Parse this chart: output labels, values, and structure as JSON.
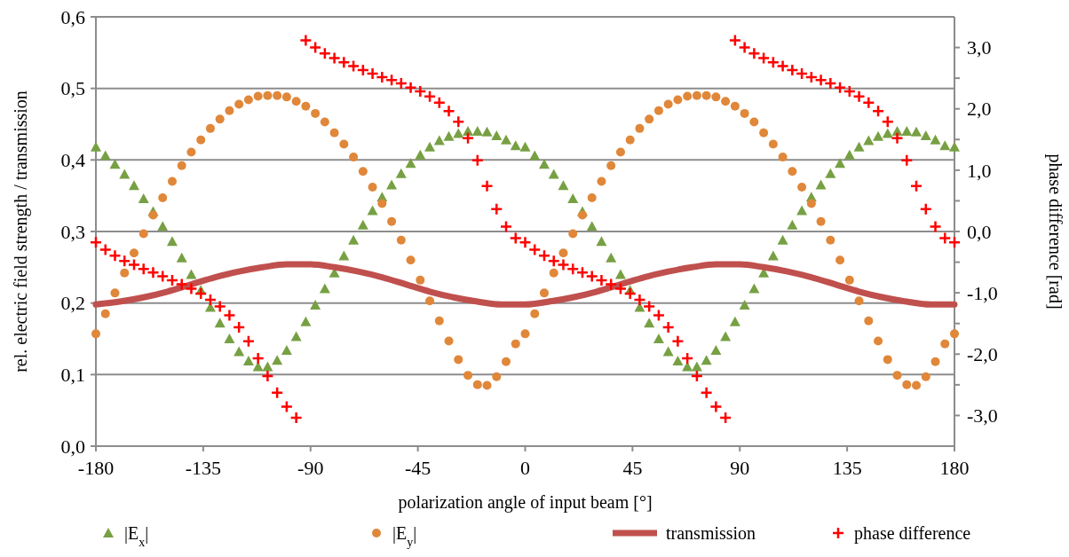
{
  "chart_data": {
    "type": "scatter",
    "xlabel": "polarization angle of input beam [°]",
    "ylabel": "rel. electric field strength / transmission",
    "y2label": "phase difference [rad]",
    "x": [
      -180,
      -176,
      -172,
      -168,
      -164,
      -160,
      -156,
      -152,
      -148,
      -144,
      -140,
      -136,
      -132,
      -128,
      -124,
      -120,
      -116,
      -112,
      -108,
      -104,
      -100,
      -96,
      -92,
      -88,
      -84,
      -80,
      -76,
      -72,
      -68,
      -64,
      -60,
      -56,
      -52,
      -48,
      -44,
      -40,
      -36,
      -32,
      -28,
      -24,
      -20,
      -16,
      -12,
      -8,
      -4,
      0,
      4,
      8,
      12,
      16,
      20,
      24,
      28,
      32,
      36,
      40,
      44,
      48,
      52,
      56,
      60,
      64,
      68,
      72,
      76,
      80,
      84,
      88,
      92,
      96,
      100,
      104,
      108,
      112,
      116,
      120,
      124,
      128,
      132,
      136,
      140,
      144,
      148,
      152,
      156,
      160,
      164,
      168,
      172,
      176,
      180
    ],
    "xlim": [
      -180,
      180
    ],
    "xticks": [
      -180,
      -135,
      -90,
      -45,
      0,
      45,
      90,
      135,
      180
    ],
    "ylim": [
      0,
      0.6
    ],
    "yticks": [
      {
        "value": 0,
        "label": "0,0"
      },
      {
        "value": 0.1,
        "label": "0,1"
      },
      {
        "value": 0.2,
        "label": "0,2"
      },
      {
        "value": 0.3,
        "label": "0,3"
      },
      {
        "value": 0.4,
        "label": "0,4"
      },
      {
        "value": 0.5,
        "label": "0,5"
      },
      {
        "value": 0.6,
        "label": "0,6"
      }
    ],
    "y2lim": [
      -3.5,
      3.5
    ],
    "y2ticks": [
      {
        "value": -3,
        "label": "-3,0"
      },
      {
        "value": -2.5,
        "label": null
      },
      {
        "value": -2,
        "label": "-2,0"
      },
      {
        "value": -1.5,
        "label": null
      },
      {
        "value": -1,
        "label": "-1,0"
      },
      {
        "value": -0.5,
        "label": null
      },
      {
        "value": 0,
        "label": "0,0"
      },
      {
        "value": 0.5,
        "label": null
      },
      {
        "value": 1,
        "label": "1,0"
      },
      {
        "value": 1.5,
        "label": null
      },
      {
        "value": 2,
        "label": "2,0"
      },
      {
        "value": 2.5,
        "label": null
      },
      {
        "value": 3,
        "label": "3,0"
      }
    ],
    "grid": "y",
    "legend": "bottom",
    "series": [
      {
        "name": "|E$_{x}$|",
        "color": "#77a043",
        "marker": "triangle",
        "values": [
          0.418,
          0.406,
          0.394,
          0.38,
          0.364,
          0.346,
          0.328,
          0.307,
          0.286,
          0.263,
          0.24,
          0.218,
          0.194,
          0.172,
          0.15,
          0.132,
          0.119,
          0.111,
          0.111,
          0.12,
          0.134,
          0.153,
          0.174,
          0.197,
          0.22,
          0.242,
          0.266,
          0.288,
          0.309,
          0.329,
          0.348,
          0.365,
          0.381,
          0.395,
          0.407,
          0.418,
          0.427,
          0.433,
          0.437,
          0.44,
          0.44,
          0.439,
          0.434,
          0.428,
          0.42,
          0.418,
          0.406,
          0.394,
          0.38,
          0.364,
          0.346,
          0.328,
          0.307,
          0.286,
          0.263,
          0.24,
          0.218,
          0.194,
          0.172,
          0.15,
          0.132,
          0.119,
          0.111,
          0.111,
          0.12,
          0.134,
          0.153,
          0.174,
          0.197,
          0.22,
          0.242,
          0.266,
          0.288,
          0.309,
          0.329,
          0.348,
          0.365,
          0.381,
          0.395,
          0.407,
          0.418,
          0.427,
          0.433,
          0.437,
          0.44,
          0.44,
          0.439,
          0.434,
          0.428,
          0.42,
          0.418
        ]
      },
      {
        "name": "|E$_{y}$|",
        "color": "#e0873a",
        "marker": "circle",
        "values": [
          0.157,
          0.185,
          0.214,
          0.242,
          0.27,
          0.297,
          0.323,
          0.347,
          0.37,
          0.392,
          0.411,
          0.428,
          0.444,
          0.457,
          0.469,
          0.478,
          0.484,
          0.489,
          0.49,
          0.49,
          0.488,
          0.482,
          0.475,
          0.465,
          0.453,
          0.438,
          0.422,
          0.404,
          0.384,
          0.362,
          0.339,
          0.314,
          0.288,
          0.26,
          0.232,
          0.203,
          0.175,
          0.147,
          0.121,
          0.099,
          0.086,
          0.085,
          0.097,
          0.118,
          0.143,
          0.157,
          0.185,
          0.214,
          0.242,
          0.27,
          0.297,
          0.323,
          0.347,
          0.37,
          0.392,
          0.411,
          0.428,
          0.444,
          0.457,
          0.469,
          0.478,
          0.484,
          0.489,
          0.49,
          0.49,
          0.488,
          0.482,
          0.475,
          0.465,
          0.453,
          0.438,
          0.422,
          0.404,
          0.384,
          0.362,
          0.339,
          0.314,
          0.288,
          0.26,
          0.232,
          0.203,
          0.175,
          0.147,
          0.121,
          0.099,
          0.086,
          0.085,
          0.097,
          0.118,
          0.143,
          0.157
        ]
      },
      {
        "name": "transmission",
        "type": "line",
        "color": "#c0504d",
        "line_style": "solid",
        "x": [
          -180,
          -170,
          -160,
          -150,
          -140,
          -130,
          -120,
          -110,
          -100,
          -90,
          -80,
          -70,
          -60,
          -50,
          -40,
          -30,
          -20,
          -10,
          0,
          10,
          20,
          30,
          40,
          50,
          60,
          70,
          80,
          90,
          100,
          110,
          120,
          130,
          140,
          150,
          160,
          170,
          180
        ],
        "values": [
          0.198,
          0.202,
          0.208,
          0.216,
          0.226,
          0.236,
          0.244,
          0.25,
          0.254,
          0.254,
          0.25,
          0.244,
          0.236,
          0.226,
          0.216,
          0.208,
          0.202,
          0.198,
          0.198,
          0.202,
          0.208,
          0.216,
          0.226,
          0.236,
          0.244,
          0.25,
          0.254,
          0.254,
          0.25,
          0.244,
          0.236,
          0.226,
          0.216,
          0.208,
          0.202,
          0.198,
          0.198
        ]
      },
      {
        "name": "phase difference",
        "color": "#ff0000",
        "marker": "cross",
        "axis": "y2",
        "values": [
          -0.176,
          -0.296,
          -0.393,
          -0.48,
          -0.542,
          -0.61,
          -0.668,
          -0.731,
          -0.794,
          -0.861,
          -0.933,
          -1.011,
          -1.112,
          -1.223,
          -1.368,
          -1.561,
          -1.788,
          -2.068,
          -2.357,
          -2.628,
          -2.855,
          -3.038,
          3.116,
          3.0,
          2.904,
          2.826,
          2.759,
          2.696,
          2.634,
          2.575,
          2.517,
          2.469,
          2.416,
          2.348,
          2.285,
          2.203,
          2.102,
          1.962,
          1.788,
          1.523,
          1.161,
          0.741,
          0.365,
          0.08,
          -0.108,
          -0.176,
          -0.296,
          -0.393,
          -0.48,
          -0.542,
          -0.61,
          -0.668,
          -0.731,
          -0.794,
          -0.861,
          -0.933,
          -1.011,
          -1.112,
          -1.223,
          -1.368,
          -1.561,
          -1.788,
          -2.068,
          -2.357,
          -2.628,
          -2.855,
          -3.038,
          3.116,
          3.0,
          2.904,
          2.826,
          2.759,
          2.696,
          2.634,
          2.575,
          2.517,
          2.469,
          2.416,
          2.348,
          2.285,
          2.203,
          2.102,
          1.962,
          1.788,
          1.523,
          1.161,
          0.741,
          0.365,
          0.08,
          -0.108,
          -0.176
        ]
      }
    ]
  }
}
